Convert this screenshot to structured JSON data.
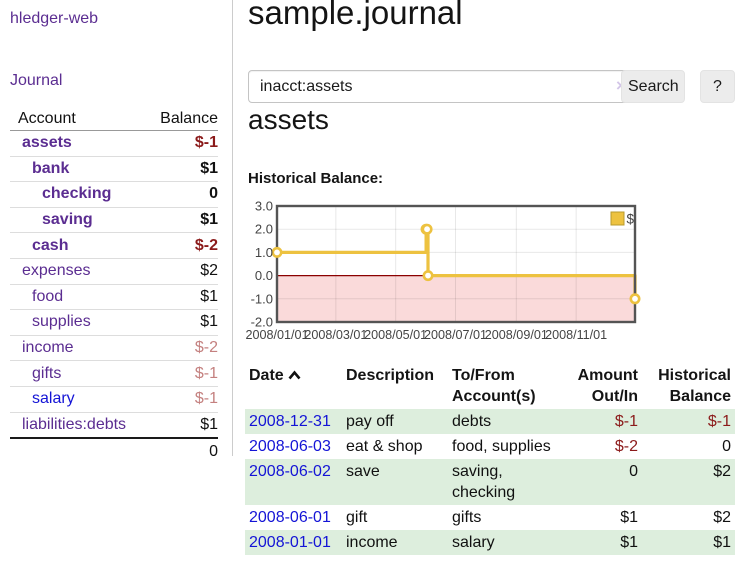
{
  "app": {
    "brand": "hledger-web"
  },
  "sidebar": {
    "journal_link": "Journal",
    "accounts_table": {
      "headers": {
        "account": "Account",
        "balance": "Balance"
      },
      "rows": [
        {
          "name": "assets",
          "balance": "$-1",
          "level": 0,
          "emph": true,
          "visited": true
        },
        {
          "name": "bank",
          "balance": "$1",
          "level": 1,
          "emph": true,
          "visited": true
        },
        {
          "name": "checking",
          "balance": "0",
          "level": 2,
          "emph": true,
          "visited": true
        },
        {
          "name": "saving",
          "balance": "$1",
          "level": 2,
          "emph": true,
          "visited": true
        },
        {
          "name": "cash",
          "balance": "$-2",
          "level": 1,
          "emph": true,
          "visited": true
        },
        {
          "name": "expenses",
          "balance": "$2",
          "level": 0,
          "emph": false,
          "visited": true
        },
        {
          "name": "food",
          "balance": "$1",
          "level": 1,
          "emph": false,
          "visited": true
        },
        {
          "name": "supplies",
          "balance": "$1",
          "level": 1,
          "emph": false,
          "visited": true
        },
        {
          "name": "income",
          "balance": "$-2",
          "level": 0,
          "emph": false,
          "visited": true
        },
        {
          "name": "gifts",
          "balance": "$-1",
          "level": 1,
          "emph": false,
          "visited": true
        },
        {
          "name": "salary",
          "balance": "$-1",
          "level": 1,
          "emph": false,
          "visited": false
        },
        {
          "name": "liabilities:debts",
          "balance": "$1",
          "level": 0,
          "emph": false,
          "visited": true
        }
      ],
      "total": "0"
    }
  },
  "header": {
    "title": "sample.journal"
  },
  "search": {
    "value": "inacct:assets",
    "clear_icon": "×",
    "search_button": "Search",
    "help_button": "?"
  },
  "account_page": {
    "heading": "assets",
    "chart_label": "Historical Balance:"
  },
  "chart_data": {
    "type": "line",
    "title": "Historical Balance",
    "legend": [
      {
        "label": "$",
        "color": "#edc240"
      }
    ],
    "legend_position": "top-right",
    "grid": true,
    "step": true,
    "ylim": [
      -2.0,
      3.0
    ],
    "yticks": [
      "3.0",
      "2.0",
      "1.0",
      "0.0",
      "-1.0",
      "-2.0"
    ],
    "ytick_values": [
      3,
      2,
      1,
      0,
      -1,
      -2
    ],
    "xtick_labels": [
      "2008/01/01",
      "2008/03/01",
      "2008/05/01",
      "2008/07/01",
      "2008/09/01",
      "2008/11/01"
    ],
    "xtick_dates": [
      "2008-01-01",
      "2008-03-01",
      "2008-05-01",
      "2008-07-01",
      "2008-09-01",
      "2008-11-01"
    ],
    "xrange": [
      "2008-01-01",
      "2008-12-31"
    ],
    "series": [
      {
        "name": "$",
        "color": "#edc240",
        "points": [
          {
            "x": "2008-01-01",
            "y": 1
          },
          {
            "x": "2008-06-01",
            "y": 2
          },
          {
            "x": "2008-06-02",
            "y": 2
          },
          {
            "x": "2008-06-03",
            "y": 0
          },
          {
            "x": "2008-12-31",
            "y": -1
          }
        ]
      }
    ],
    "zero_line_color": "#8b0000",
    "negative_region_color": "#fadada"
  },
  "register_table": {
    "headers": {
      "date": "Date",
      "description": "Description",
      "accounts": "To/From Account(s)",
      "amount": "Amount Out/In",
      "balance": "Historical Balance"
    },
    "rows": [
      {
        "date": "2008-12-31",
        "description": "pay off",
        "accounts": "debts",
        "amount": "$-1",
        "balance": "$-1"
      },
      {
        "date": "2008-06-03",
        "description": "eat & shop",
        "accounts": "food, supplies",
        "amount": "$-2",
        "balance": "0"
      },
      {
        "date": "2008-06-02",
        "description": "save",
        "accounts": "saving, checking",
        "amount": "0",
        "balance": "$2"
      },
      {
        "date": "2008-06-01",
        "description": "gift",
        "accounts": "gifts",
        "amount": "$1",
        "balance": "$2"
      },
      {
        "date": "2008-01-01",
        "description": "income",
        "accounts": "salary",
        "amount": "$1",
        "balance": "$1"
      }
    ]
  },
  "colors": {
    "accent_purple": "#5b2d91",
    "link_blue": "#1414d6",
    "negative": "#8b1a1a",
    "negative_soft": "#c4807f",
    "row_stripe_green": "#ddeedd",
    "series_yellow": "#edc240",
    "zero_line_red": "#8b0000",
    "negative_region_pink": "#fadada",
    "chart_border": "#545454"
  }
}
